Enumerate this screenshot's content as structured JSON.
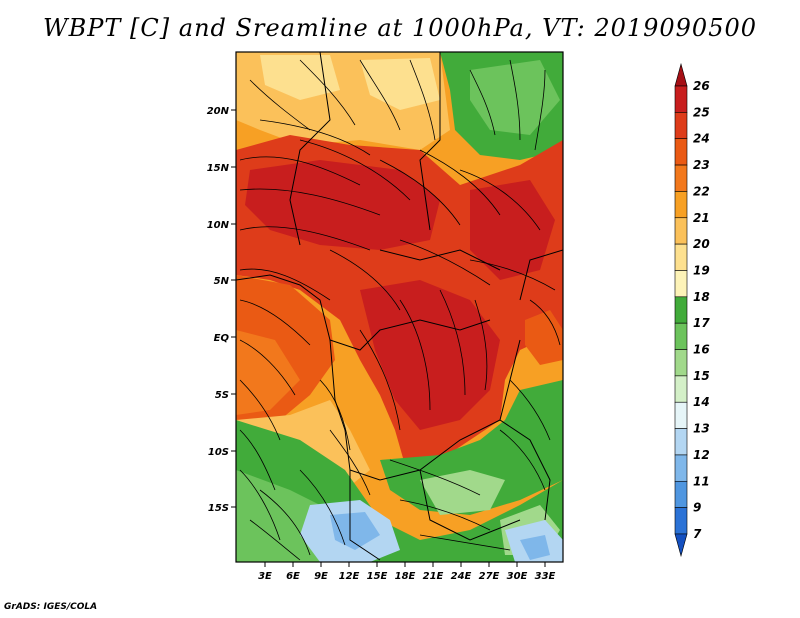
{
  "title": "WBPT [C] and Sreamline at 1000hPa, VT: 2019090500",
  "credit": "GrADS: IGES/COLA",
  "axes": {
    "lat_labels": [
      "20N",
      "15N",
      "10N",
      "5N",
      "EQ",
      "5S",
      "10S",
      "15S"
    ],
    "lon_labels": [
      "3E",
      "6E",
      "9E",
      "12E",
      "15E",
      "18E",
      "21E",
      "24E",
      "27E",
      "30E",
      "33E"
    ]
  },
  "colorbar": {
    "levels": [
      "26",
      "25",
      "24",
      "23",
      "22",
      "21",
      "20",
      "19",
      "18",
      "17",
      "16",
      "15",
      "14",
      "13",
      "12",
      "11",
      "9",
      "7"
    ],
    "colors": [
      "#a50f15",
      "#c81e1e",
      "#de3c1a",
      "#ea5a14",
      "#f2781c",
      "#f7a024",
      "#fbc15a",
      "#fde08f",
      "#fdf3b8",
      "#41ab3a",
      "#6cc35c",
      "#a1d98b",
      "#d4f0c8",
      "#e6f5f8",
      "#b3d6f2",
      "#7fb7ea",
      "#4f96e0",
      "#2b72d6",
      "#1450c0"
    ]
  },
  "icons": {
    "arrows": "streamline-arrow"
  }
}
